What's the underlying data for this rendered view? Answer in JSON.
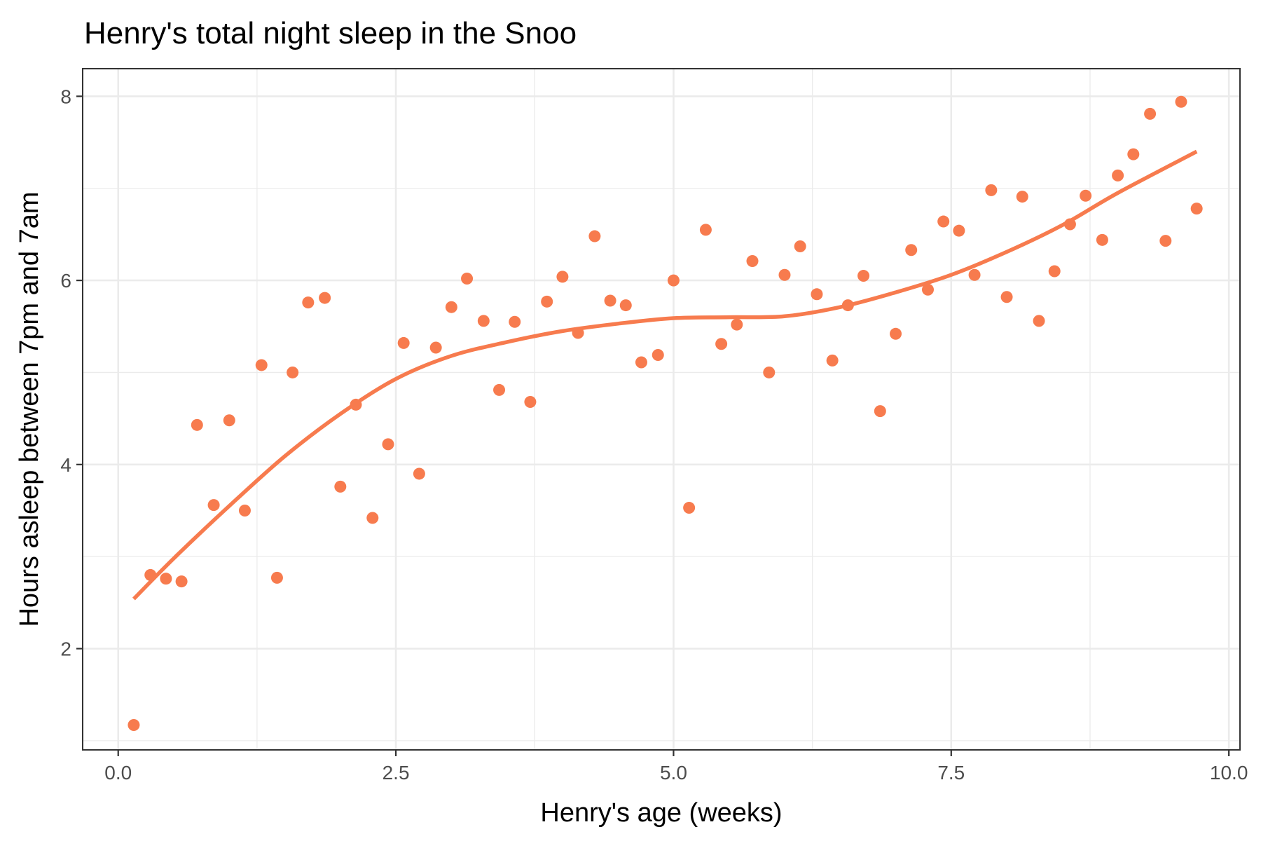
{
  "chart_data": {
    "type": "scatter",
    "title": "Henry's total night sleep in the Snoo",
    "xlabel": "Henry's age (weeks)",
    "ylabel": "Hours asleep between 7pm and 7am",
    "xlim": [
      -0.32,
      10.1
    ],
    "ylim": [
      0.9,
      8.3
    ],
    "x_ticks": [
      0.0,
      2.5,
      5.0,
      7.5,
      10.0
    ],
    "x_tick_labels": [
      "0.0",
      "2.5",
      "5.0",
      "7.5",
      "10.0"
    ],
    "x_minor": [
      1.25,
      3.75,
      6.25,
      8.75
    ],
    "y_ticks": [
      2,
      4,
      6,
      8
    ],
    "y_tick_labels": [
      "2",
      "4",
      "6",
      "8"
    ],
    "y_minor": [
      1,
      3,
      5,
      7
    ],
    "grid": true,
    "legend": "none",
    "point_color": "#f77b4e",
    "line_color": "#f77b4e",
    "series": [
      {
        "kind": "points",
        "points": [
          [
            0.14,
            1.17
          ],
          [
            0.29,
            2.8
          ],
          [
            0.43,
            2.76
          ],
          [
            0.57,
            2.73
          ],
          [
            0.71,
            4.43
          ],
          [
            0.86,
            3.56
          ],
          [
            1.0,
            4.48
          ],
          [
            1.14,
            3.5
          ],
          [
            1.29,
            5.08
          ],
          [
            1.43,
            2.77
          ],
          [
            1.57,
            5.0
          ],
          [
            1.71,
            5.76
          ],
          [
            1.86,
            5.81
          ],
          [
            2.0,
            3.76
          ],
          [
            2.14,
            4.65
          ],
          [
            2.29,
            3.42
          ],
          [
            2.43,
            4.22
          ],
          [
            2.57,
            5.32
          ],
          [
            2.71,
            3.9
          ],
          [
            2.86,
            5.27
          ],
          [
            3.0,
            5.71
          ],
          [
            3.14,
            6.02
          ],
          [
            3.29,
            5.56
          ],
          [
            3.43,
            4.81
          ],
          [
            3.57,
            5.55
          ],
          [
            3.71,
            4.68
          ],
          [
            3.86,
            5.77
          ],
          [
            4.0,
            6.04
          ],
          [
            4.14,
            5.43
          ],
          [
            4.29,
            6.48
          ],
          [
            4.43,
            5.78
          ],
          [
            4.57,
            5.73
          ],
          [
            4.71,
            5.11
          ],
          [
            4.86,
            5.19
          ],
          [
            5.0,
            6.0
          ],
          [
            5.14,
            3.53
          ],
          [
            5.29,
            6.55
          ],
          [
            5.43,
            5.31
          ],
          [
            5.57,
            5.52
          ],
          [
            5.71,
            6.21
          ],
          [
            5.86,
            5.0
          ],
          [
            6.0,
            6.06
          ],
          [
            6.14,
            6.37
          ],
          [
            6.29,
            5.85
          ],
          [
            6.43,
            5.13
          ],
          [
            6.57,
            5.73
          ],
          [
            6.71,
            6.05
          ],
          [
            6.86,
            4.58
          ],
          [
            7.0,
            5.42
          ],
          [
            7.14,
            6.33
          ],
          [
            7.29,
            5.9
          ],
          [
            7.43,
            6.64
          ],
          [
            7.57,
            6.54
          ],
          [
            7.71,
            6.06
          ],
          [
            7.86,
            6.98
          ],
          [
            8.0,
            5.82
          ],
          [
            8.14,
            6.91
          ],
          [
            8.29,
            5.56
          ],
          [
            8.43,
            6.1
          ],
          [
            8.57,
            6.61
          ],
          [
            8.71,
            6.92
          ],
          [
            8.86,
            6.44
          ],
          [
            9.0,
            7.14
          ],
          [
            9.14,
            7.37
          ],
          [
            9.29,
            7.81
          ],
          [
            9.43,
            6.43
          ],
          [
            9.57,
            7.94
          ],
          [
            9.71,
            6.78
          ]
        ]
      },
      {
        "kind": "smooth",
        "points": [
          [
            0.14,
            2.54
          ],
          [
            0.5,
            2.98
          ],
          [
            1.0,
            3.55
          ],
          [
            1.5,
            4.09
          ],
          [
            2.0,
            4.55
          ],
          [
            2.5,
            4.93
          ],
          [
            3.0,
            5.18
          ],
          [
            3.5,
            5.33
          ],
          [
            4.0,
            5.45
          ],
          [
            4.5,
            5.53
          ],
          [
            5.0,
            5.59
          ],
          [
            5.5,
            5.6
          ],
          [
            6.0,
            5.61
          ],
          [
            6.5,
            5.71
          ],
          [
            7.0,
            5.87
          ],
          [
            7.5,
            6.06
          ],
          [
            8.0,
            6.31
          ],
          [
            8.5,
            6.6
          ],
          [
            9.0,
            6.95
          ],
          [
            9.71,
            7.4
          ]
        ]
      }
    ]
  }
}
